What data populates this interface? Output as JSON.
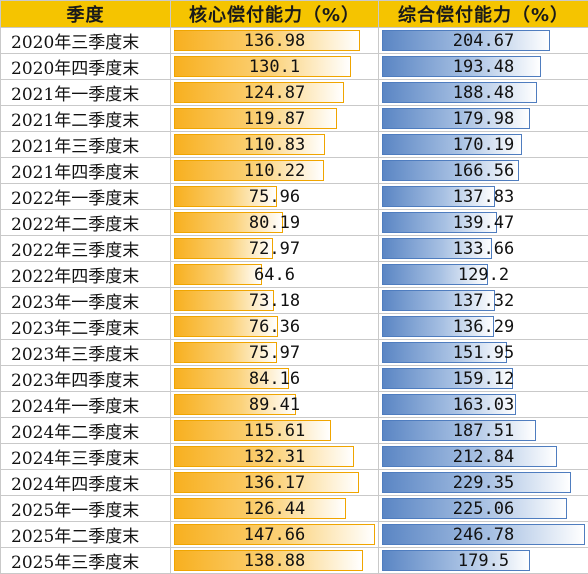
{
  "headers": {
    "quarter": "季度",
    "core": "核心偿付能力（%）",
    "comprehensive": "综合偿付能力（%）"
  },
  "colors": {
    "header_bg": "#f5c400",
    "core_bar": "#f8b020",
    "comprehensive_bar": "#5b86c4"
  },
  "scale": {
    "core_max": 147.66,
    "comprehensive_max": 246.78
  },
  "rows": [
    {
      "quarter": "2020年三季度末",
      "core": "136.98",
      "comprehensive": "204.67"
    },
    {
      "quarter": "2020年四季度末",
      "core": "130.1",
      "comprehensive": "193.48"
    },
    {
      "quarter": "2021年一季度末",
      "core": "124.87",
      "comprehensive": "188.48"
    },
    {
      "quarter": "2021年二季度末",
      "core": "119.87",
      "comprehensive": "179.98"
    },
    {
      "quarter": "2021年三季度末",
      "core": "110.83",
      "comprehensive": "170.19"
    },
    {
      "quarter": "2021年四季度末",
      "core": "110.22",
      "comprehensive": "166.56"
    },
    {
      "quarter": "2022年一季度末",
      "core": "75.96",
      "comprehensive": "137.83"
    },
    {
      "quarter": "2022年二季度末",
      "core": "80.19",
      "comprehensive": "139.47"
    },
    {
      "quarter": "2022年三季度末",
      "core": "72.97",
      "comprehensive": "133.66"
    },
    {
      "quarter": "2022年四季度末",
      "core": "64.6",
      "comprehensive": "129.2"
    },
    {
      "quarter": "2023年一季度末",
      "core": "73.18",
      "comprehensive": "137.32"
    },
    {
      "quarter": "2023年二季度末",
      "core": "76.36",
      "comprehensive": "136.29"
    },
    {
      "quarter": "2023年三季度末",
      "core": "75.97",
      "comprehensive": "151.95"
    },
    {
      "quarter": "2023年四季度末",
      "core": "84.16",
      "comprehensive": "159.12"
    },
    {
      "quarter": "2024年一季度末",
      "core": "89.41",
      "comprehensive": "163.03"
    },
    {
      "quarter": "2024年二季度末",
      "core": "115.61",
      "comprehensive": "187.51"
    },
    {
      "quarter": "2024年三季度末",
      "core": "132.31",
      "comprehensive": "212.84"
    },
    {
      "quarter": "2024年四季度末",
      "core": "136.17",
      "comprehensive": "229.35"
    },
    {
      "quarter": "2025年一季度末",
      "core": "126.44",
      "comprehensive": "225.06"
    },
    {
      "quarter": "2025年二季度末",
      "core": "147.66",
      "comprehensive": "246.78"
    },
    {
      "quarter": "2025年三季度末",
      "core": "138.88",
      "comprehensive": "179.5"
    }
  ]
}
